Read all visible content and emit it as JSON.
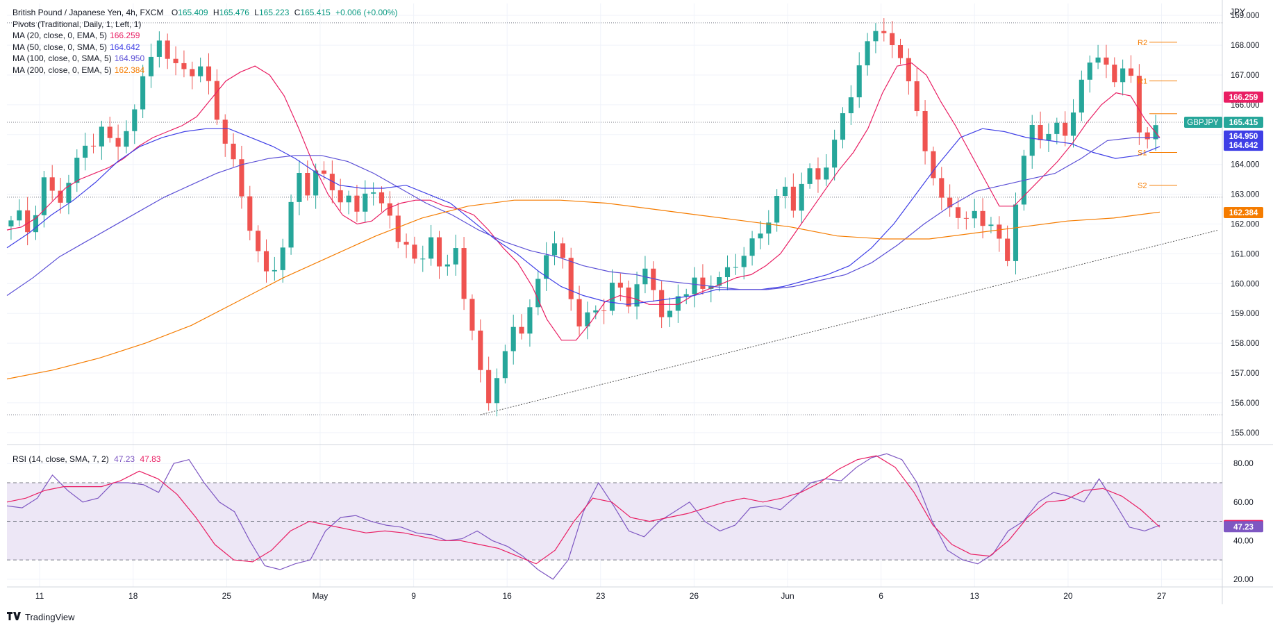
{
  "legend": {
    "symbol": "British Pound / Japanese Yen, 4h, FXCM",
    "ohlc": {
      "o_label": "O",
      "o": "165.409",
      "h_label": "H",
      "h": "165.476",
      "l_label": "L",
      "l": "165.223",
      "c_label": "C",
      "c": "165.415",
      "chg": "+0.006 (+0.00%)"
    },
    "pivots": "Pivots (Traditional, Daily, 1, Left, 1)",
    "mas": [
      {
        "label": "MA (20, close, 0, EMA, 5)",
        "value": "166.259",
        "color": "#e91e63"
      },
      {
        "label": "MA (50, close, 0, SMA, 5)",
        "value": "164.642",
        "color": "#3f3fe6"
      },
      {
        "label": "MA (100, close, 0, SMA, 5)",
        "value": "164.950",
        "color": "#5b4fd6"
      },
      {
        "label": "MA (200, close, 0, EMA, 5)",
        "value": "162.384",
        "color": "#f57c00"
      }
    ]
  },
  "currency_unit": "JPY",
  "rsi_legend": {
    "label": "RSI (14, close, SMA, 7, 2)",
    "v1": "47.23",
    "v2": "47.83",
    "c1": "#7e57c2",
    "c2": "#e91e63"
  },
  "brand": "TradingView",
  "colors": {
    "up": "#26a69a",
    "down": "#ef5350",
    "grid": "#f0f3fa",
    "axis_text": "#131722",
    "rsi_band": "#ede7f6",
    "rsi_line": "#7e57c2",
    "rsi_ma": "#e91e63",
    "pivot": "#f57c00"
  },
  "chart_data": [
    {
      "type": "candlestick",
      "title": "British Pound / Japanese Yen, 4h, FXCM",
      "ylim": [
        154.6,
        169.4
      ],
      "y_ticks": [
        155.0,
        156.0,
        157.0,
        158.0,
        159.0,
        160.0,
        161.0,
        162.0,
        163.0,
        164.0,
        165.0,
        166.0,
        167.0,
        168.0,
        169.0
      ],
      "x_tick_labels": [
        "11",
        "18",
        "25",
        "May",
        "9",
        "16",
        "23",
        "26",
        "Jun",
        "6",
        "13",
        "20",
        "27"
      ],
      "ohlc_path": [
        162.0,
        162.2,
        161.8,
        162.5,
        163.6,
        163.2,
        162.9,
        163.3,
        164.2,
        164.8,
        164.4,
        165.3,
        165.0,
        164.7,
        165.2,
        166.3,
        167.5,
        167.3,
        168.4,
        167.1,
        167.5,
        166.8,
        167.6,
        167.3,
        166.0,
        165.0,
        164.4,
        163.2,
        162.2,
        161.5,
        160.3,
        160.6,
        161.0,
        162.0,
        164.0,
        162.8,
        163.5,
        163.7,
        163.5,
        162.7,
        163.0,
        162.6,
        163.0,
        162.8,
        162.7,
        162.3,
        161.2,
        161.4,
        161.1,
        160.8,
        161.6,
        160.6,
        160.5,
        161.0,
        159.2,
        158.3,
        156.6,
        156.0,
        157.5,
        157.7,
        158.8,
        158.2,
        159.5,
        160.2,
        161.7,
        161.3,
        160.4,
        159.0,
        158.5,
        159.2,
        158.7,
        159.7,
        160.1,
        159.2,
        159.9,
        160.5,
        160.3,
        159.1,
        158.6,
        159.4,
        159.6,
        160.2,
        159.7,
        160.2,
        160.3,
        160.4,
        160.6,
        160.9,
        161.2,
        161.6,
        162.2,
        162.9,
        163.3,
        162.7,
        163.4,
        163.7,
        163.5,
        163.9,
        164.7,
        166.0,
        166.6,
        167.5,
        168.4,
        168.8,
        168.1,
        167.6,
        167.6,
        166.3,
        165.2,
        164.2,
        163.5,
        162.3,
        162.8,
        161.9,
        162.1,
        162.3,
        161.7,
        162.4,
        160.0,
        162.5,
        163.5,
        165.4,
        165.0,
        164.6,
        165.3,
        165.0,
        165.6,
        166.6,
        167.6,
        167.8,
        167.2,
        166.6,
        167.3,
        166.9,
        165.0,
        165.1,
        165.4
      ],
      "candle_count": 140,
      "pivots": [
        {
          "name": "R2",
          "value": 168.1
        },
        {
          "name": "R1",
          "value": 166.8
        },
        {
          "name": "P",
          "value": 165.7
        },
        {
          "name": "S1",
          "value": 164.4
        },
        {
          "name": "S2",
          "value": 163.3
        }
      ],
      "horizontal_levels": [
        168.75,
        165.415,
        162.9,
        155.6
      ],
      "trendline": {
        "from": [
          57,
          155.6
        ],
        "to": [
          140,
          161.5
        ]
      },
      "series": [
        {
          "name": "MA (20, close, 0, EMA, 5)",
          "values": [
            161.8,
            161.9,
            162.2,
            162.7,
            163.2,
            163.5,
            163.7,
            163.9,
            164.2,
            164.6,
            164.9,
            165.1,
            165.3,
            165.6,
            166.2,
            166.8,
            167.1,
            167.3,
            167.0,
            166.3,
            165.2,
            164.0,
            163.0,
            162.3,
            162.0,
            162.1,
            162.5,
            162.7,
            162.8,
            162.8,
            162.6,
            162.5,
            162.3,
            161.8,
            161.2,
            160.7,
            159.9,
            158.8,
            158.1,
            158.1,
            158.7,
            159.4,
            159.6,
            159.5,
            159.3,
            159.3,
            159.3,
            159.6,
            159.8,
            160.0,
            160.2,
            160.3,
            160.6,
            161.0,
            161.7,
            162.4,
            163.1,
            163.8,
            164.4,
            165.2,
            166.4,
            167.3,
            167.4,
            167.0,
            166.1,
            165.3,
            164.4,
            163.5,
            162.6,
            162.6,
            163.1,
            163.6,
            164.1,
            164.7,
            165.4,
            166.0,
            166.4,
            166.3,
            165.5,
            164.9
          ]
        },
        {
          "name": "MA (50, close, 0, SMA, 5)",
          "values": [
            161.2,
            161.7,
            162.3,
            162.8,
            163.4,
            164.1,
            164.6,
            164.9,
            165.1,
            165.2,
            165.2,
            164.9,
            164.6,
            164.2,
            163.7,
            163.3,
            163.2,
            163.2,
            163.3,
            163.0,
            162.7,
            162.1,
            161.5,
            161.0,
            160.4,
            159.9,
            159.6,
            159.4,
            159.3,
            159.4,
            159.5,
            159.6,
            159.8,
            159.8,
            159.8,
            159.9,
            160.1,
            160.3,
            160.6,
            161.2,
            162.0,
            163.0,
            164.0,
            164.9,
            165.2,
            165.1,
            164.9,
            164.8,
            164.7,
            164.4,
            164.2,
            164.3,
            164.6
          ]
        },
        {
          "name": "MA (100, close, 0, SMA, 5)",
          "values": [
            159.6,
            160.2,
            160.9,
            161.4,
            161.9,
            162.4,
            162.9,
            163.3,
            163.7,
            164.0,
            164.2,
            164.3,
            164.3,
            164.1,
            163.7,
            163.2,
            162.7,
            162.3,
            161.8,
            161.4,
            161.1,
            160.9,
            160.6,
            160.4,
            160.3,
            160.1,
            160.0,
            159.9,
            159.8,
            159.8,
            159.9,
            160.1,
            160.3,
            160.7,
            161.3,
            162.0,
            162.6,
            163.1,
            163.3,
            163.5,
            163.7,
            164.2,
            164.8,
            164.9,
            164.9
          ]
        },
        {
          "name": "MA (200, close, 0, EMA, 5)",
          "values": [
            156.8,
            157.1,
            157.5,
            158.0,
            158.6,
            159.4,
            160.2,
            160.9,
            161.6,
            162.2,
            162.6,
            162.8,
            162.8,
            162.7,
            162.5,
            162.3,
            162.1,
            161.9,
            161.6,
            161.5,
            161.5,
            161.7,
            161.9,
            162.1,
            162.2,
            162.4
          ]
        }
      ]
    },
    {
      "type": "line",
      "title": "RSI (14, close, SMA, 7, 2)",
      "ylim": [
        16,
        88
      ],
      "y_ticks": [
        20.0,
        40.0,
        60.0,
        80.0
      ],
      "bands": [
        30,
        50,
        70
      ],
      "series": [
        {
          "name": "RSI",
          "values": [
            58,
            57,
            62,
            74,
            66,
            60,
            62,
            70,
            70,
            69,
            65,
            80,
            82,
            70,
            60,
            55,
            40,
            27,
            25,
            28,
            30,
            45,
            52,
            53,
            50,
            48,
            47,
            44,
            43,
            40,
            41,
            45,
            40,
            37,
            32,
            25,
            20,
            30,
            55,
            70,
            58,
            45,
            42,
            50,
            55,
            60,
            50,
            45,
            48,
            57,
            58,
            56,
            63,
            70,
            72,
            71,
            78,
            83,
            85,
            82,
            70,
            50,
            35,
            30,
            28,
            33,
            45,
            50,
            60,
            65,
            63,
            60,
            72,
            60,
            47,
            45,
            48
          ]
        },
        {
          "name": "RSI MA",
          "values": [
            60,
            62,
            66,
            68,
            68,
            68,
            71,
            76,
            72,
            64,
            52,
            38,
            30,
            29,
            35,
            45,
            50,
            48,
            46,
            44,
            45,
            44,
            42,
            40,
            40,
            38,
            36,
            32,
            28,
            35,
            50,
            62,
            60,
            52,
            50,
            52,
            54,
            57,
            60,
            62,
            60,
            62,
            65,
            70,
            77,
            82,
            84,
            78,
            65,
            48,
            38,
            33,
            32,
            40,
            52,
            60,
            61,
            66,
            67,
            63,
            56,
            47
          ]
        }
      ]
    }
  ]
}
